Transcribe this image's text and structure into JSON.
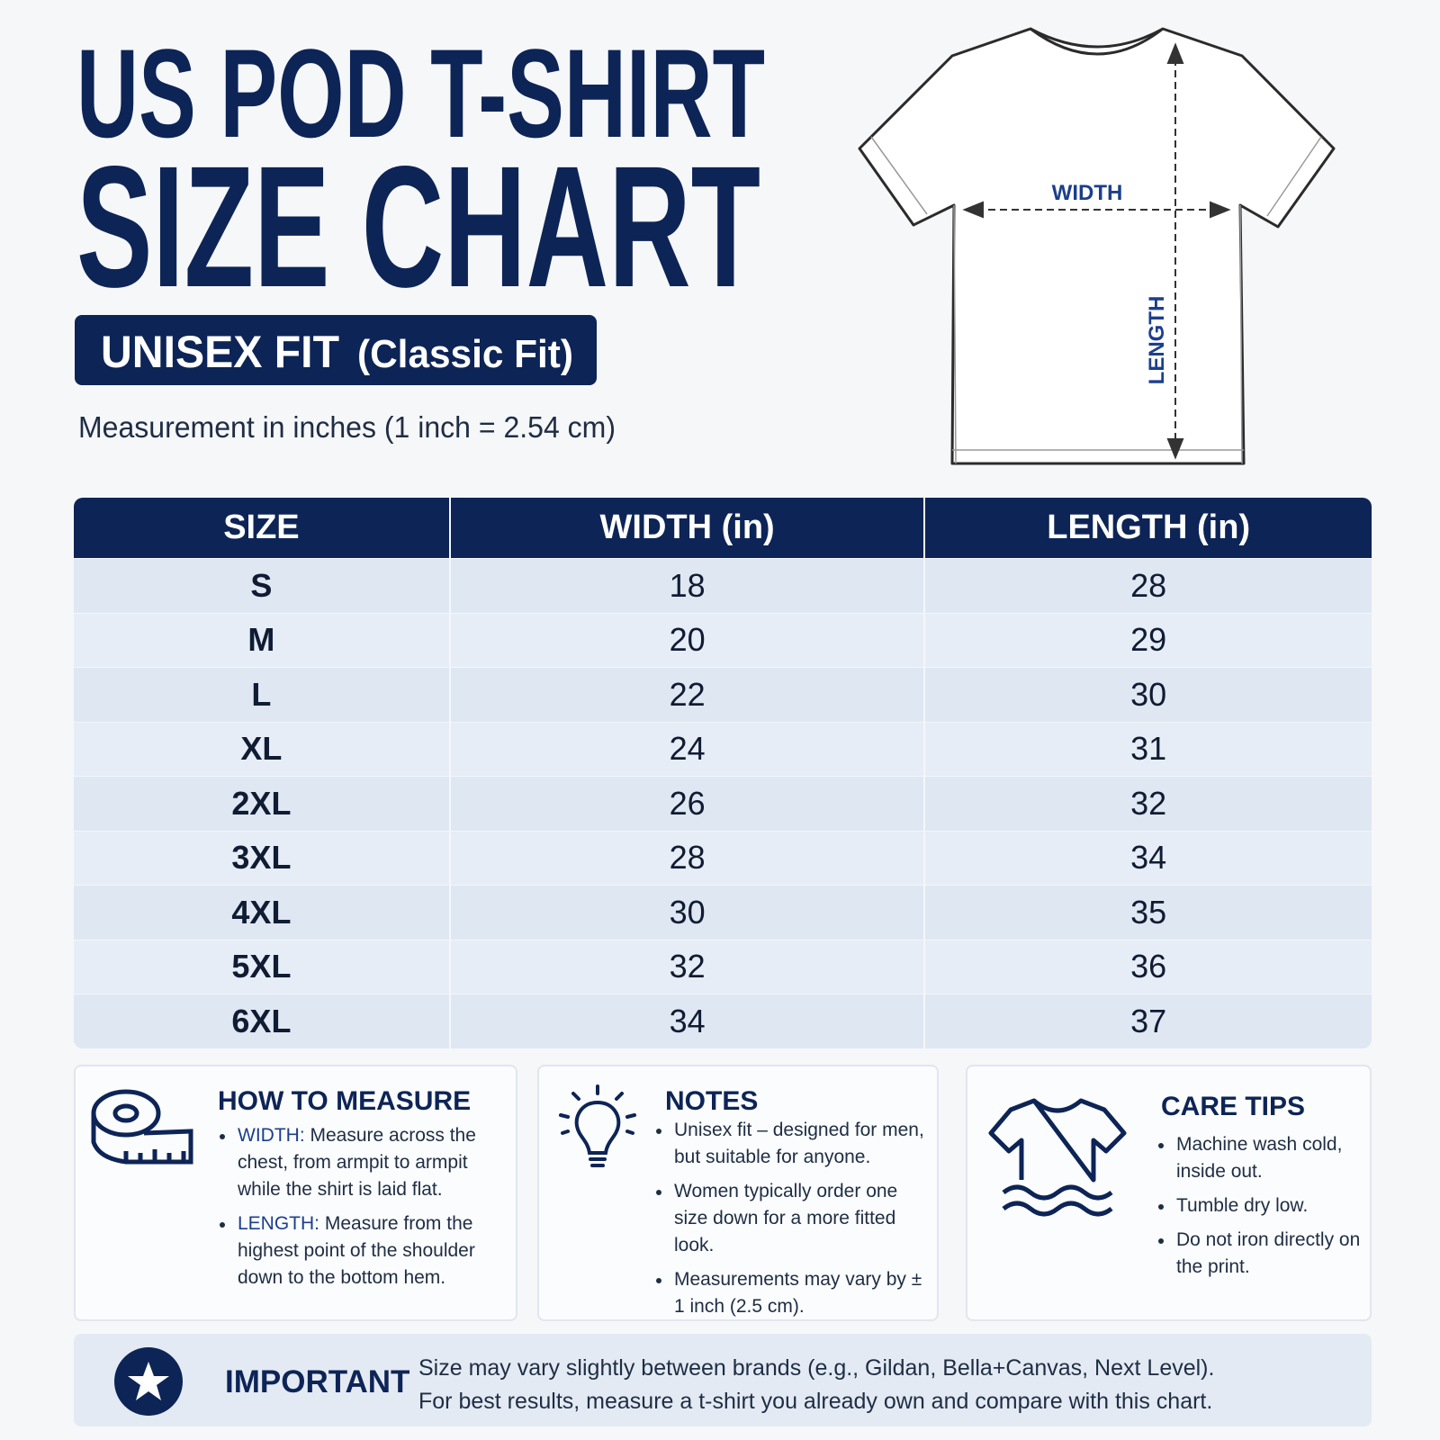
{
  "header": {
    "title_line1": "US POD T-SHIRT",
    "title_line2": "SIZE CHART",
    "fit_label": "UNISEX FIT",
    "fit_sub": "(Classic Fit)",
    "measurement_note": "Measurement in inches (1 inch = 2.54 cm)"
  },
  "diagram": {
    "width_label": "WIDTH",
    "length_label": "LENGTH"
  },
  "table": {
    "columns": [
      "SIZE",
      "WIDTH (in)",
      "LENGTH (in)"
    ],
    "rows": [
      [
        "S",
        "18",
        "28"
      ],
      [
        "M",
        "20",
        "29"
      ],
      [
        "L",
        "22",
        "30"
      ],
      [
        "XL",
        "24",
        "31"
      ],
      [
        "2XL",
        "26",
        "32"
      ],
      [
        "3XL",
        "28",
        "34"
      ],
      [
        "4XL",
        "30",
        "35"
      ],
      [
        "5XL",
        "32",
        "36"
      ],
      [
        "6XL",
        "34",
        "37"
      ]
    ]
  },
  "how_to_measure": {
    "title": "HOW TO MEASURE",
    "items": [
      {
        "term": "WIDTH:",
        "text": "Measure across the chest, from armpit to armpit while the shirt is laid flat."
      },
      {
        "term": "LENGTH:",
        "text": "Measure from the highest point of the shoulder down to the bottom hem."
      }
    ]
  },
  "notes": {
    "title": "NOTES",
    "items": [
      "Unisex fit – designed for men, but suitable for anyone.",
      "Women typically order one size down for a more fitted look.",
      "Measurements may vary by ± 1 inch (2.5 cm)."
    ]
  },
  "care_tips": {
    "title": "CARE TIPS",
    "items": [
      "Machine wash cold, inside out.",
      "Tumble dry low.",
      "Do not iron directly on the print."
    ]
  },
  "important": {
    "title": "IMPORTANT",
    "lines": [
      "Size may vary slightly between brands (e.g., Gildan, Bella+Canvas, Next Level).",
      "For best results, measure a t-shirt you already own and compare with this chart."
    ]
  }
}
